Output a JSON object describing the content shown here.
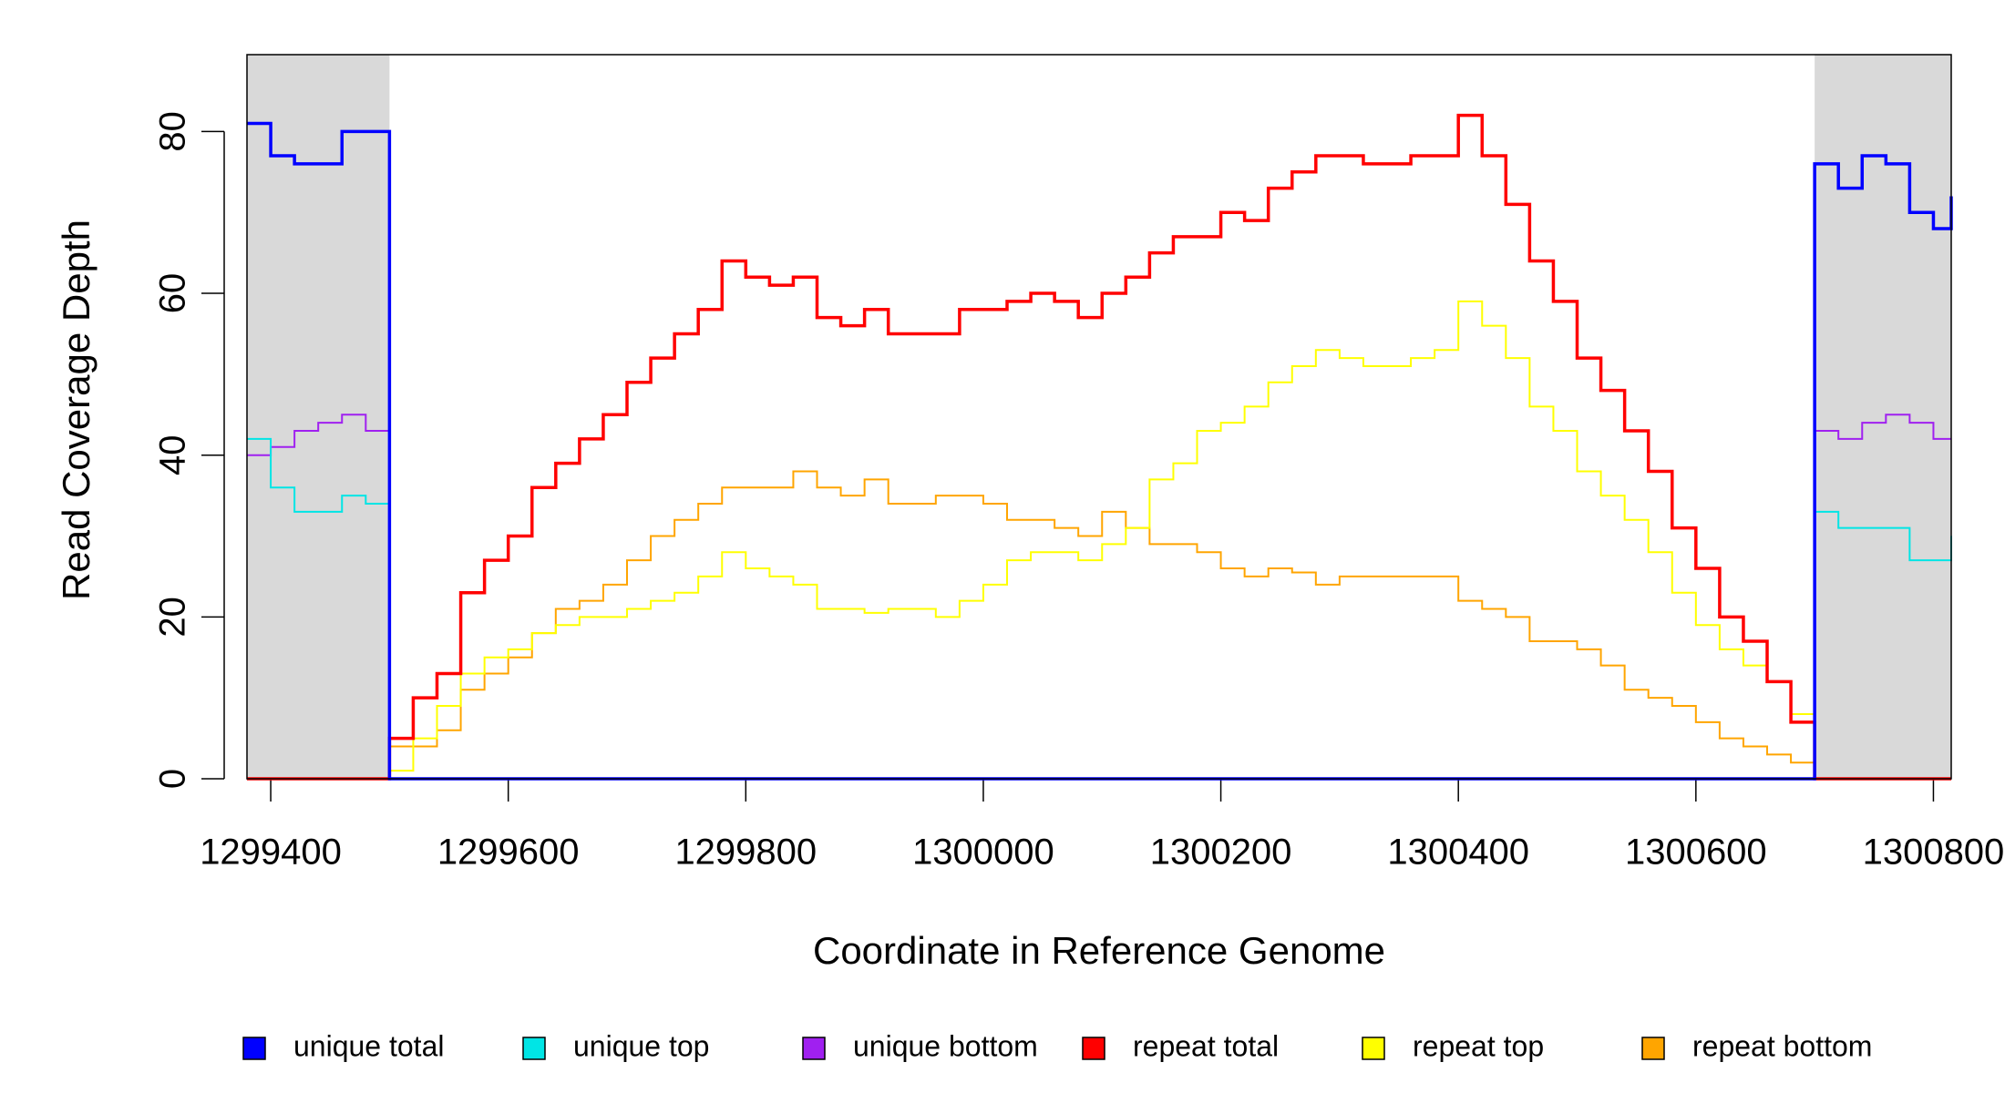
{
  "chart_data": {
    "type": "line",
    "drawstyle": "steps-post",
    "xlabel": "Coordinate in Reference Genome",
    "ylabel": "Read Coverage Depth",
    "x": [
      1299380,
      1299400,
      1299420,
      1299440,
      1299460,
      1299480,
      1299500,
      1299520,
      1299540,
      1299560,
      1299580,
      1299600,
      1299620,
      1299640,
      1299660,
      1299680,
      1299700,
      1299720,
      1299740,
      1299760,
      1299780,
      1299800,
      1299820,
      1299840,
      1299860,
      1299880,
      1299900,
      1299920,
      1299940,
      1299960,
      1299980,
      1300000,
      1300020,
      1300040,
      1300060,
      1300080,
      1300100,
      1300120,
      1300140,
      1300160,
      1300180,
      1300200,
      1300220,
      1300240,
      1300260,
      1300280,
      1300300,
      1300320,
      1300340,
      1300360,
      1300380,
      1300400,
      1300420,
      1300440,
      1300460,
      1300480,
      1300500,
      1300520,
      1300540,
      1300560,
      1300580,
      1300600,
      1300620,
      1300640,
      1300660,
      1300680,
      1300700,
      1300720,
      1300740,
      1300760,
      1300780,
      1300800,
      1300815
    ],
    "series": [
      {
        "name": "unique total",
        "color": "#0000ff",
        "values": [
          81,
          77,
          76,
          76,
          80,
          80,
          0,
          0,
          0,
          0,
          0,
          0,
          0,
          0,
          0,
          0,
          0,
          0,
          0,
          0,
          0,
          0,
          0,
          0,
          0,
          0,
          0,
          0,
          0,
          0,
          0,
          0,
          0,
          0,
          0,
          0,
          0,
          0,
          0,
          0,
          0,
          0,
          0,
          0,
          0,
          0,
          0,
          0,
          0,
          0,
          0,
          0,
          0,
          0,
          0,
          0,
          0,
          0,
          0,
          0,
          0,
          0,
          0,
          0,
          0,
          0,
          76,
          73,
          77,
          76,
          70,
          68,
          72
        ]
      },
      {
        "name": "unique top",
        "color": "#00e5e5",
        "values": [
          42,
          36,
          33,
          33,
          35,
          34,
          0,
          0,
          0,
          0,
          0,
          0,
          0,
          0,
          0,
          0,
          0,
          0,
          0,
          0,
          0,
          0,
          0,
          0,
          0,
          0,
          0,
          0,
          0,
          0,
          0,
          0,
          0,
          0,
          0,
          0,
          0,
          0,
          0,
          0,
          0,
          0,
          0,
          0,
          0,
          0,
          0,
          0,
          0,
          0,
          0,
          0,
          0,
          0,
          0,
          0,
          0,
          0,
          0,
          0,
          0,
          0,
          0,
          0,
          0,
          0,
          33,
          31,
          31,
          31,
          27,
          27,
          30
        ]
      },
      {
        "name": "unique bottom",
        "color": "#a020f0",
        "values": [
          40,
          41,
          43,
          44,
          45,
          43,
          0,
          0,
          0,
          0,
          0,
          0,
          0,
          0,
          0,
          0,
          0,
          0,
          0,
          0,
          0,
          0,
          0,
          0,
          0,
          0,
          0,
          0,
          0,
          0,
          0,
          0,
          0,
          0,
          0,
          0,
          0,
          0,
          0,
          0,
          0,
          0,
          0,
          0,
          0,
          0,
          0,
          0,
          0,
          0,
          0,
          0,
          0,
          0,
          0,
          0,
          0,
          0,
          0,
          0,
          0,
          0,
          0,
          0,
          0,
          0,
          43,
          42,
          44,
          45,
          44,
          42,
          42
        ]
      },
      {
        "name": "repeat total",
        "color": "#ff0000",
        "values": [
          0,
          0,
          0,
          0,
          0,
          0,
          5,
          10,
          13,
          23,
          27,
          30,
          36,
          39,
          42,
          45,
          49,
          52,
          55,
          58,
          64,
          62,
          61,
          62,
          57,
          56,
          58,
          55,
          55,
          55,
          58,
          58,
          59,
          60,
          59,
          57,
          60,
          62,
          65,
          67,
          67,
          70,
          69,
          73,
          75,
          77,
          77,
          76,
          76,
          77,
          77,
          82,
          77,
          71,
          64,
          59,
          52,
          48,
          43,
          38,
          31,
          26,
          20,
          17,
          12,
          7,
          0,
          0,
          0,
          0,
          0,
          0,
          0
        ]
      },
      {
        "name": "repeat top",
        "color": "#ffff00",
        "values": [
          0,
          0,
          0,
          0,
          0,
          0,
          1,
          5,
          9,
          13,
          15,
          16,
          18,
          19,
          20,
          20,
          21,
          22,
          23,
          25,
          28,
          26,
          25,
          24,
          21,
          21,
          20.5,
          21,
          21,
          20,
          22,
          24,
          27,
          28,
          28,
          27,
          29,
          31,
          37,
          39,
          43,
          44,
          46,
          49,
          51,
          53,
          52,
          51,
          51,
          52,
          53,
          59,
          56,
          52,
          46,
          43,
          38,
          35,
          32,
          28,
          23,
          19,
          16,
          14,
          12,
          8,
          0,
          0,
          0,
          0,
          0,
          0,
          0
        ]
      },
      {
        "name": "repeat bottom",
        "color": "#ffa500",
        "values": [
          0,
          0,
          0,
          0,
          0,
          0,
          4,
          4,
          6,
          11,
          13,
          15,
          18,
          21,
          22,
          24,
          27,
          30,
          32,
          34,
          36,
          36,
          36,
          38,
          36,
          35,
          37,
          34,
          34,
          35,
          35,
          34,
          32,
          32,
          31,
          30,
          33,
          31,
          29,
          29,
          28,
          26,
          25,
          26,
          25.5,
          24,
          25,
          25,
          25,
          25,
          25,
          22,
          21,
          20,
          17,
          17,
          16,
          14,
          11,
          10,
          9,
          7,
          5,
          4,
          3,
          2,
          0,
          0,
          0,
          0,
          0,
          0,
          0
        ]
      }
    ],
    "shaded_regions": [
      [
        1299380,
        1299500
      ],
      [
        1300700,
        1300815
      ]
    ],
    "shade_color": "#d9d9d9",
    "xlim": [
      1299380,
      1300815
    ],
    "xticks": [
      1299400,
      1299600,
      1299800,
      1300000,
      1300200,
      1300400,
      1300600,
      1300800
    ],
    "ylim": [
      0,
      89.5
    ],
    "yticks": [
      0,
      20,
      40,
      60,
      80
    ],
    "legend": "bottom"
  }
}
